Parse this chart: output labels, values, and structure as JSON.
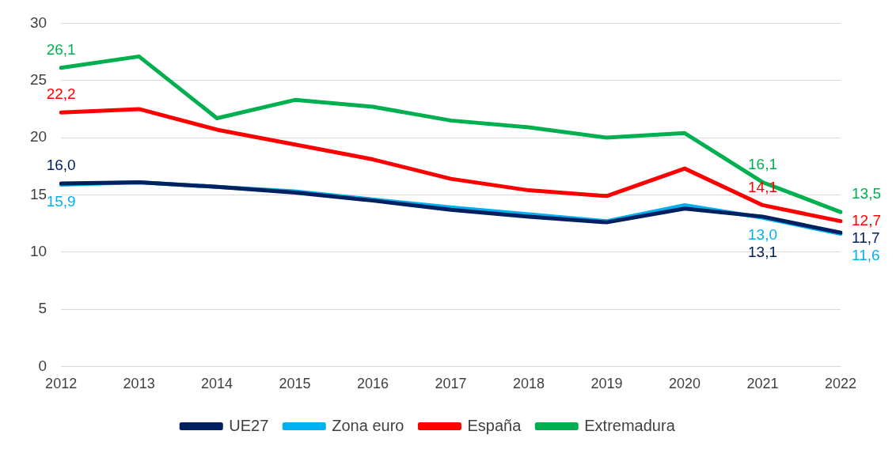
{
  "chart_data": {
    "type": "line",
    "categories": [
      "2012",
      "2013",
      "2014",
      "2015",
      "2016",
      "2017",
      "2018",
      "2019",
      "2020",
      "2021",
      "2022"
    ],
    "series": [
      {
        "name": "UE27",
        "color": "#002060",
        "values": [
          16.0,
          16.1,
          15.7,
          15.2,
          14.5,
          13.7,
          13.1,
          12.6,
          13.8,
          13.1,
          11.7
        ],
        "value_labels": [
          "16,0",
          null,
          null,
          null,
          null,
          null,
          null,
          null,
          null,
          "13,1",
          "11,7"
        ]
      },
      {
        "name": "Zona euro",
        "color": "#00b0f0",
        "values": [
          15.9,
          16.1,
          15.7,
          15.3,
          14.6,
          13.9,
          13.3,
          12.7,
          14.1,
          13.0,
          11.6
        ],
        "value_labels": [
          "15,9",
          null,
          null,
          null,
          null,
          null,
          null,
          null,
          null,
          "13,0",
          "11,6"
        ]
      },
      {
        "name": "España",
        "color": "#ff0000",
        "values": [
          22.2,
          22.5,
          20.7,
          19.4,
          18.1,
          16.4,
          15.4,
          14.9,
          17.3,
          14.1,
          12.7
        ],
        "value_labels": [
          "22,2",
          null,
          null,
          null,
          null,
          null,
          null,
          null,
          null,
          "14,1",
          "12,7"
        ]
      },
      {
        "name": "Extremadura",
        "color": "#00b050",
        "values": [
          26.1,
          27.1,
          21.7,
          23.3,
          22.7,
          21.5,
          20.9,
          20.0,
          20.4,
          16.1,
          13.5
        ],
        "value_labels": [
          "26,1",
          null,
          null,
          null,
          null,
          null,
          null,
          null,
          null,
          "16,1",
          "13,5"
        ]
      }
    ],
    "ylim": [
      0,
      30
    ],
    "yticks": [
      0,
      5,
      10,
      15,
      20,
      25,
      30
    ],
    "grid": "y",
    "legend": "bottom",
    "marker": "none",
    "line_style": "solid"
  }
}
